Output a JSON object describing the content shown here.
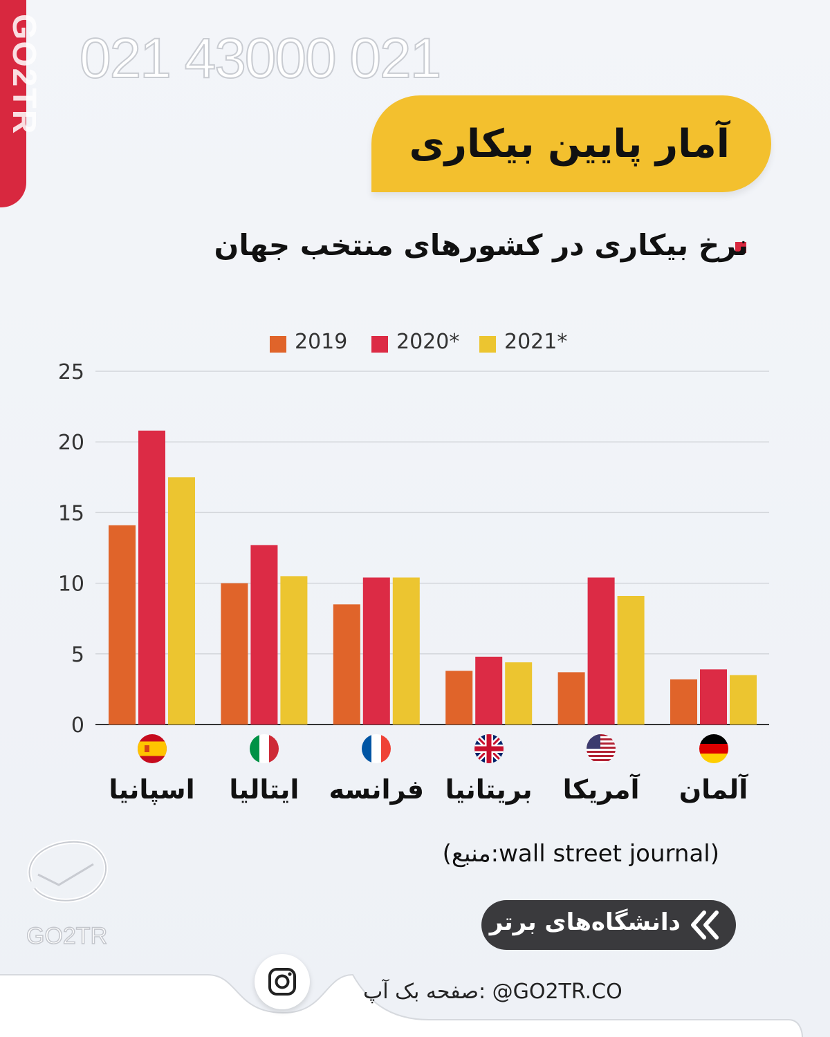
{
  "brand": {
    "side_tab": "GO2TR",
    "phone": "021 43000 021",
    "logo_text": "GO2TR"
  },
  "header": {
    "title": "آمار پایین بیکاری",
    "subtitle": "نرخ بیکاری در کشورهای منتخب جهان"
  },
  "colors": {
    "accent_red": "#d8283f",
    "accent_yellow": "#f3c02e",
    "series_2019": "#e0642a",
    "series_2020": "#dc2b45",
    "series_2021": "#ecc530"
  },
  "chart_data": {
    "type": "bar",
    "categories": [
      "اسپانیا",
      "ایتالیا",
      "فرانسه",
      "بریتانیا",
      "آمریکا",
      "آلمان"
    ],
    "flags": [
      "spain-flag-icon",
      "italy-flag-icon",
      "france-flag-icon",
      "uk-flag-icon",
      "usa-flag-icon",
      "germany-flag-icon"
    ],
    "series": [
      {
        "name": "2019",
        "color": "#e0642a",
        "values": [
          14.1,
          10.0,
          8.5,
          3.8,
          3.7,
          3.2
        ]
      },
      {
        "name": "2020*",
        "color": "#dc2b45",
        "values": [
          20.8,
          12.7,
          10.4,
          4.8,
          10.4,
          3.9
        ]
      },
      {
        "name": "2021*",
        "color": "#ecc530",
        "values": [
          17.5,
          10.5,
          10.4,
          4.4,
          9.1,
          3.5
        ]
      }
    ],
    "yticks": [
      "0",
      "5",
      "10",
      "15",
      "20",
      "25"
    ],
    "ylim": [
      0,
      25
    ],
    "grid": true,
    "legend": "top-center"
  },
  "source": "(منبع:wall street journal)",
  "cta": {
    "label": "دانشگاه‌های برتر"
  },
  "footer": {
    "backup_text": "صفحه بک آپ: @GO2TR.CO"
  }
}
